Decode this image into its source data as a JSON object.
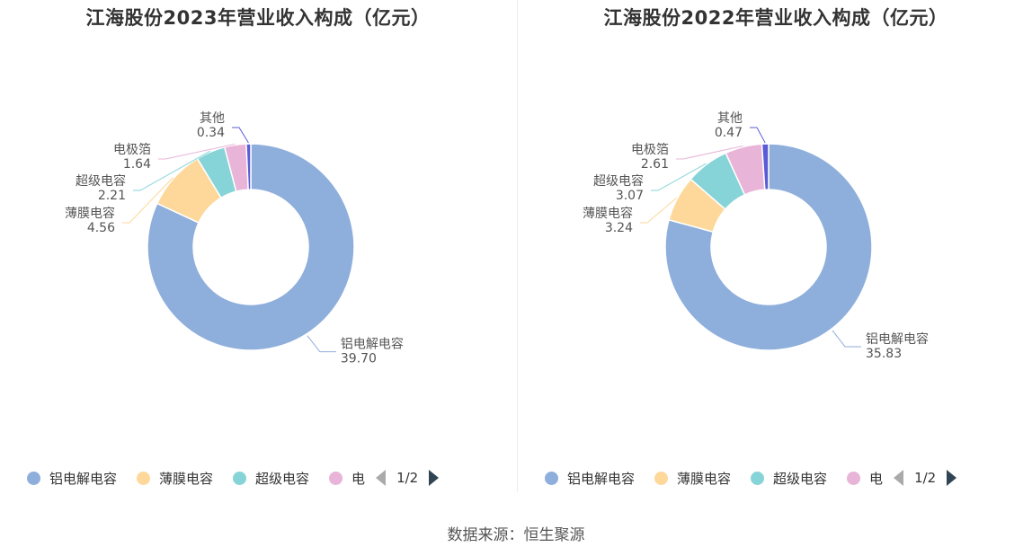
{
  "chart_data": [
    {
      "type": "pie",
      "title": "江海股份2023年营业收入构成（亿元）",
      "categories": [
        "铝电解电容",
        "薄膜电容",
        "超级电容",
        "电极箔",
        "其他"
      ],
      "values": [
        39.7,
        4.56,
        2.21,
        1.64,
        0.34
      ],
      "value_labels": [
        "39.70",
        "4.56",
        "2.21",
        "1.64",
        "0.34"
      ],
      "legend_visible": [
        "铝电解电容",
        "薄膜电容",
        "超级电容",
        "电"
      ],
      "legend_position": "bottom",
      "pager": "1/2"
    },
    {
      "type": "pie",
      "title": "江海股份2022年营业收入构成（亿元）",
      "categories": [
        "铝电解电容",
        "薄膜电容",
        "超级电容",
        "电极箔",
        "其他"
      ],
      "values": [
        35.83,
        3.24,
        3.07,
        2.61,
        0.47
      ],
      "value_labels": [
        "35.83",
        "3.24",
        "3.07",
        "2.61",
        "0.47"
      ],
      "legend_visible": [
        "铝电解电容",
        "薄膜电容",
        "超级电容",
        "电"
      ],
      "legend_position": "bottom",
      "pager": "1/2"
    }
  ],
  "colors": [
    "#8eaedb",
    "#fdd89a",
    "#86d4d8",
    "#e8b4d8",
    "#5b5bd6"
  ],
  "source": "数据来源：恒生聚源"
}
